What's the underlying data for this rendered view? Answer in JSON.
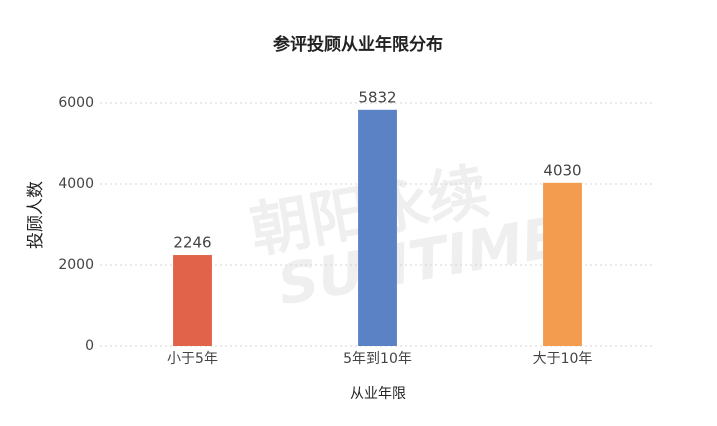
{
  "chart_data": {
    "type": "bar",
    "title": "参评投顾从业年限分布",
    "ylabel": "投顾人数",
    "xlabel": "从业年限",
    "categories": [
      "小于5年",
      "5年到10年",
      "大于10年"
    ],
    "values": [
      2246,
      5832,
      4030
    ],
    "colors": [
      "#e0634a",
      "#5b82c5",
      "#f39c4f"
    ],
    "ylim": [
      0,
      6000
    ],
    "yticks": [
      0,
      2000,
      4000,
      6000
    ],
    "grid": true,
    "watermark": [
      "朝阳永续",
      "SUNTIME"
    ]
  }
}
